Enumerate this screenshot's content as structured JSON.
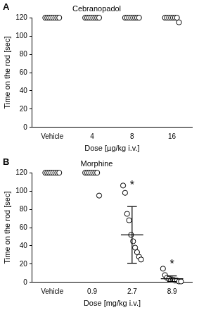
{
  "chart_data": [
    {
      "type": "scatter",
      "panel_label": "A",
      "title": "Cebranopadol",
      "x_label": "Dose [µg/kg i.v.]",
      "y_label": "Time on the rod [sec]",
      "categories": [
        "Vehicle",
        "4",
        "8",
        "16"
      ],
      "values": [
        [
          120,
          120,
          120,
          120,
          120,
          120,
          120,
          120
        ],
        [
          120,
          120,
          120,
          120,
          120,
          120,
          120,
          120
        ],
        [
          120,
          120,
          120,
          120,
          120,
          120,
          120,
          120
        ],
        [
          120,
          120,
          120,
          120,
          120,
          120,
          120,
          115
        ]
      ],
      "color": "#000000",
      "marker": "circle",
      "ylim": [
        0,
        120
      ],
      "yticks": [
        0,
        20,
        40,
        60,
        80,
        100,
        120
      ],
      "grid": false
    },
    {
      "type": "scatter",
      "panel_label": "B",
      "title": "Morphine",
      "x_label": "Dose [mg/kg i.v.]",
      "y_label": "Time on the rod [sec]",
      "categories": [
        "Vehicle",
        "0.9",
        "2.7",
        "8.9"
      ],
      "values": [
        [
          120,
          120,
          120,
          120,
          120,
          120,
          120,
          120
        ],
        [
          120,
          120,
          120,
          120,
          120,
          120,
          120,
          95
        ],
        [
          106,
          98,
          75,
          68,
          52,
          45,
          38,
          33,
          28,
          25
        ],
        [
          15,
          8,
          5,
          4,
          3,
          3,
          2,
          2,
          1,
          1
        ]
      ],
      "means": [
        null,
        null,
        52,
        4
      ],
      "error_low": [
        null,
        null,
        21,
        1
      ],
      "error_high": [
        null,
        null,
        83,
        7
      ],
      "annotations": [
        {
          "category": "2.7",
          "y": 108,
          "text": "*"
        },
        {
          "category": "8.9",
          "y": 22,
          "text": "*"
        }
      ],
      "color": "#000000",
      "marker": "circle",
      "ylim": [
        0,
        120
      ],
      "yticks": [
        0,
        20,
        40,
        60,
        80,
        100,
        120
      ],
      "grid": false
    }
  ]
}
